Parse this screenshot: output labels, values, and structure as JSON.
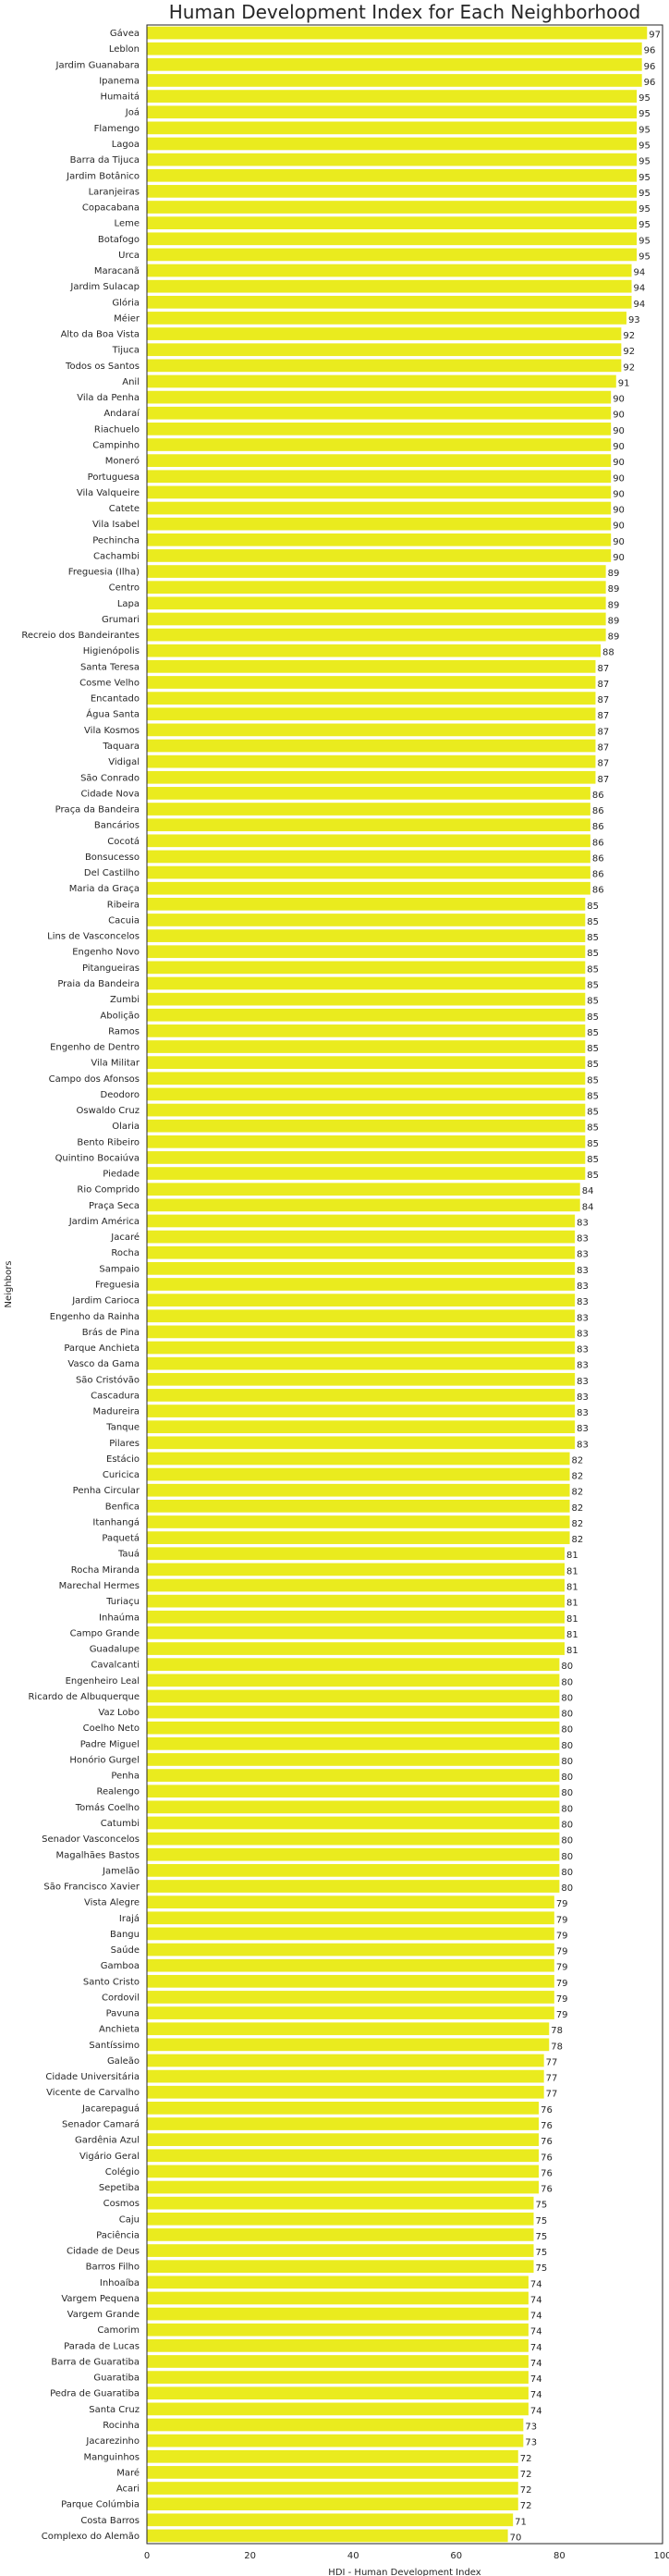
{
  "chart_data": {
    "type": "bar",
    "orientation": "horizontal",
    "title": "Human Development Index for Each Neighborhood",
    "xlabel": "HDI - Human Development Index",
    "ylabel": "Neighbors",
    "xlim": [
      0,
      100
    ],
    "xticks": [
      0,
      20,
      40,
      60,
      80,
      100
    ],
    "bar_color": "#eaeb1e",
    "value_labels": true,
    "categories": [
      "Gávea",
      "Leblon",
      "Jardim Guanabara",
      "Ipanema",
      "Humaitá",
      "Joá",
      "Flamengo",
      "Lagoa",
      "Barra da Tijuca",
      "Jardim Botânico",
      "Laranjeiras",
      "Copacabana",
      "Leme",
      "Botafogo",
      "Urca",
      "Maracanã",
      "Jardim Sulacap",
      "Glória",
      "Méier",
      "Alto da Boa Vista",
      "Tijuca",
      "Todos os Santos",
      "Anil",
      "Vila da Penha",
      "Andaraí",
      "Riachuelo",
      "Campinho",
      "Moneró",
      "Portuguesa",
      "Vila Valqueire",
      "Catete",
      "Vila Isabel",
      "Pechincha",
      "Cachambi",
      "Freguesia (Ilha)",
      "Centro",
      "Lapa",
      "Grumari",
      "Recreio dos Bandeirantes",
      "Higienópolis",
      "Santa Teresa",
      "Cosme Velho",
      "Encantado",
      "Água Santa",
      "Vila Kosmos",
      "Taquara",
      "Vidigal",
      "São Conrado",
      "Cidade Nova",
      "Praça da Bandeira",
      "Bancários",
      "Cocotá",
      "Bonsucesso",
      "Del Castilho",
      "Maria da Graça",
      "Ribeira",
      "Cacuia",
      "Lins de Vasconcelos",
      "Engenho Novo",
      "Pitangueiras",
      "Praia da Bandeira",
      "Zumbi",
      "Abolição",
      "Ramos",
      "Engenho de Dentro",
      "Vila Militar",
      "Campo dos Afonsos",
      "Deodoro",
      "Oswaldo Cruz",
      "Olaria",
      "Bento Ribeiro",
      "Quintino Bocaiúva",
      "Piedade",
      "Rio Comprido",
      "Praça Seca",
      "Jardim América",
      "Jacaré",
      "Rocha",
      "Sampaio",
      "Freguesia",
      "Jardim Carioca",
      "Engenho da Rainha",
      "Brás de Pina",
      "Parque Anchieta",
      "Vasco da Gama",
      "São Cristóvão",
      "Cascadura",
      "Madureira",
      "Tanque",
      "Pilares",
      "Estácio",
      "Curicica",
      "Penha Circular",
      "Benfica",
      "Itanhangá",
      "Paquetá",
      "Tauá",
      "Rocha Miranda",
      "Marechal Hermes",
      "Turiaçu",
      "Inhaúma",
      "Campo Grande",
      "Guadalupe",
      "Cavalcanti",
      "Engenheiro Leal",
      "Ricardo de Albuquerque",
      "Vaz Lobo",
      "Coelho Neto",
      "Padre Miguel",
      "Honório Gurgel",
      "Penha",
      "Realengo",
      "Tomás Coelho",
      "Catumbi",
      "Senador Vasconcelos",
      "Magalhães Bastos",
      "Jamelão",
      "São Francisco Xavier",
      "Vista Alegre",
      "Irajá",
      "Bangu",
      "Saúde",
      "Gamboa",
      "Santo Cristo",
      "Cordovil",
      "Pavuna",
      "Anchieta",
      "Santíssimo",
      "Galeão",
      "Cidade Universitária",
      "Vicente de Carvalho",
      "Jacarepaguá",
      "Senador Camará",
      "Gardênia Azul",
      "Vigário Geral",
      "Colégio",
      "Sepetiba",
      "Cosmos",
      "Caju",
      "Paciência",
      "Cidade de Deus",
      "Barros Filho",
      "Inhoaíba",
      "Vargem Pequena",
      "Vargem Grande",
      "Camorim",
      "Parada de Lucas",
      "Barra de Guaratiba",
      "Guaratiba",
      "Pedra de Guaratiba",
      "Santa Cruz",
      "Rocinha",
      "Jacarezinho",
      "Manguinhos",
      "Maré",
      "Acari",
      "Parque Colúmbia",
      "Costa Barros",
      "Complexo do Alemão"
    ],
    "values": [
      97,
      96,
      96,
      96,
      95,
      95,
      95,
      95,
      95,
      95,
      95,
      95,
      95,
      95,
      95,
      94,
      94,
      94,
      93,
      92,
      92,
      92,
      91,
      90,
      90,
      90,
      90,
      90,
      90,
      90,
      90,
      90,
      90,
      90,
      89,
      89,
      89,
      89,
      89,
      88,
      87,
      87,
      87,
      87,
      87,
      87,
      87,
      87,
      86,
      86,
      86,
      86,
      86,
      86,
      86,
      85,
      85,
      85,
      85,
      85,
      85,
      85,
      85,
      85,
      85,
      85,
      85,
      85,
      85,
      85,
      85,
      85,
      85,
      84,
      84,
      83,
      83,
      83,
      83,
      83,
      83,
      83,
      83,
      83,
      83,
      83,
      83,
      83,
      83,
      83,
      82,
      82,
      82,
      82,
      82,
      82,
      81,
      81,
      81,
      81,
      81,
      81,
      81,
      80,
      80,
      80,
      80,
      80,
      80,
      80,
      80,
      80,
      80,
      80,
      80,
      80,
      80,
      80,
      79,
      79,
      79,
      79,
      79,
      79,
      79,
      79,
      78,
      78,
      77,
      77,
      77,
      76,
      76,
      76,
      76,
      76,
      76,
      75,
      75,
      75,
      75,
      75,
      74,
      74,
      74,
      74,
      74,
      74,
      74,
      74,
      74,
      73,
      73,
      72,
      72,
      72,
      72,
      71,
      70
    ]
  }
}
